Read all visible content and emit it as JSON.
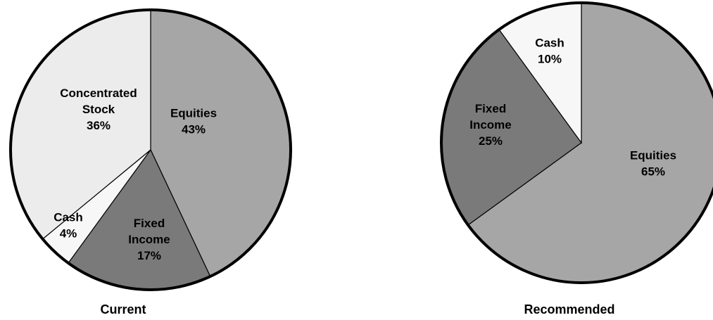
{
  "chart_data": [
    {
      "type": "pie",
      "title": "Current",
      "start": "top",
      "direction": "clockwise",
      "slices": [
        {
          "label_lines": [
            "Equities",
            "43%"
          ],
          "value": 43,
          "color": "#a6a6a6"
        },
        {
          "label_lines": [
            "Fixed",
            "Income",
            "17%"
          ],
          "value": 17,
          "color": "#7a7a7a"
        },
        {
          "label_lines": [
            "Cash",
            "4%"
          ],
          "value": 4,
          "color": "#f7f7f7"
        },
        {
          "label_lines": [
            "Concentrated",
            "Stock",
            "36%"
          ],
          "value": 36,
          "color": "#ececec"
        }
      ]
    },
    {
      "type": "pie",
      "title": "Recommended",
      "start": "top",
      "direction": "clockwise",
      "slices": [
        {
          "label_lines": [
            "Equities",
            "65%"
          ],
          "value": 65,
          "color": "#a6a6a6"
        },
        {
          "label_lines": [
            "Fixed",
            "Income",
            "25%"
          ],
          "value": 25,
          "color": "#7a7a7a"
        },
        {
          "label_lines": [
            "Cash",
            "10%"
          ],
          "value": 10,
          "color": "#f7f7f7"
        }
      ]
    }
  ]
}
